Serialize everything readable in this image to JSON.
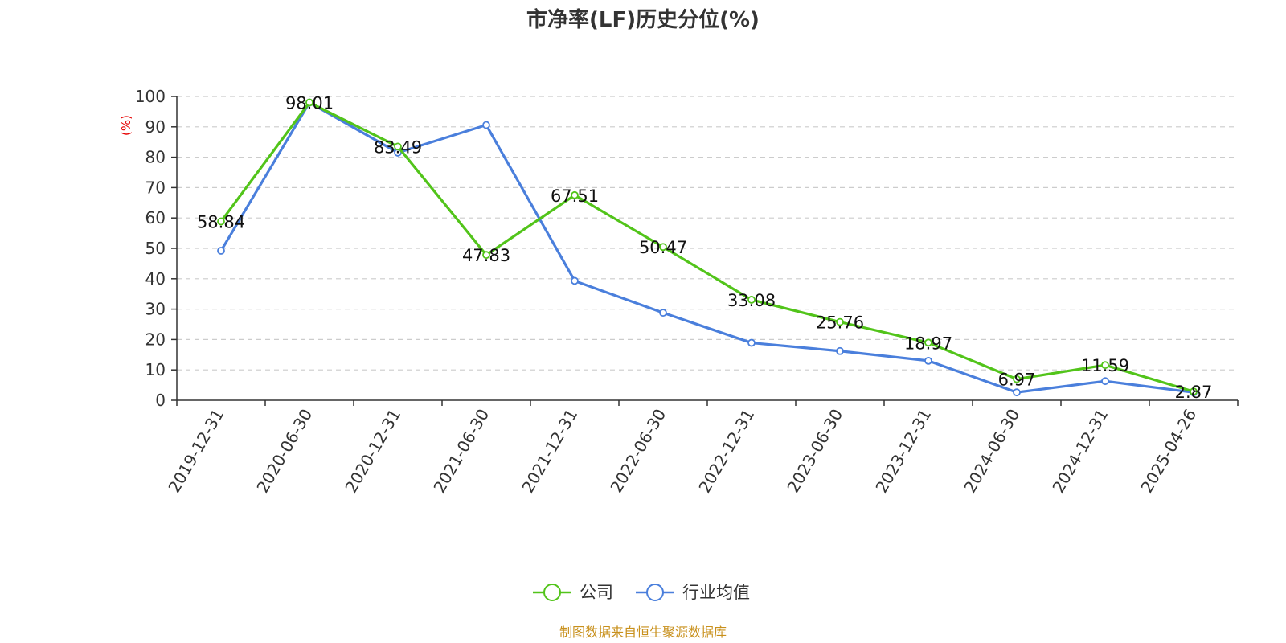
{
  "chart_data": {
    "type": "line",
    "title": "市净率(LF)历史分位(%)",
    "ylabel": "(%)",
    "xlabel": "",
    "ylim": [
      0,
      100
    ],
    "yticks": [
      0,
      10,
      20,
      30,
      40,
      50,
      60,
      70,
      80,
      90,
      100
    ],
    "categories": [
      "2019-12-31",
      "2020-06-30",
      "2020-12-31",
      "2021-06-30",
      "2021-12-31",
      "2022-06-30",
      "2022-12-31",
      "2023-06-30",
      "2023-12-31",
      "2024-06-30",
      "2024-12-31",
      "2025-04-26"
    ],
    "series": [
      {
        "name": "公司",
        "color": "#52c41a",
        "values": [
          58.84,
          98.01,
          83.49,
          47.83,
          67.51,
          50.47,
          33.08,
          25.76,
          18.97,
          6.97,
          11.59,
          2.87
        ],
        "labels": [
          "58.84",
          "98.01",
          "83.49",
          "47.83",
          "67.51",
          "50.47",
          "33.08",
          "25.76",
          "18.97",
          "6.97",
          "11.59",
          "2.87"
        ]
      },
      {
        "name": "行业均值",
        "color": "#4a7fdc",
        "values": [
          49.2,
          98.0,
          81.5,
          90.6,
          39.3,
          28.8,
          18.9,
          16.2,
          13.0,
          2.6,
          6.3,
          2.6
        ]
      }
    ],
    "grid": true,
    "legend_position": "bottom-center"
  },
  "footer": {
    "source": "制图数据来自恒生聚源数据库"
  }
}
